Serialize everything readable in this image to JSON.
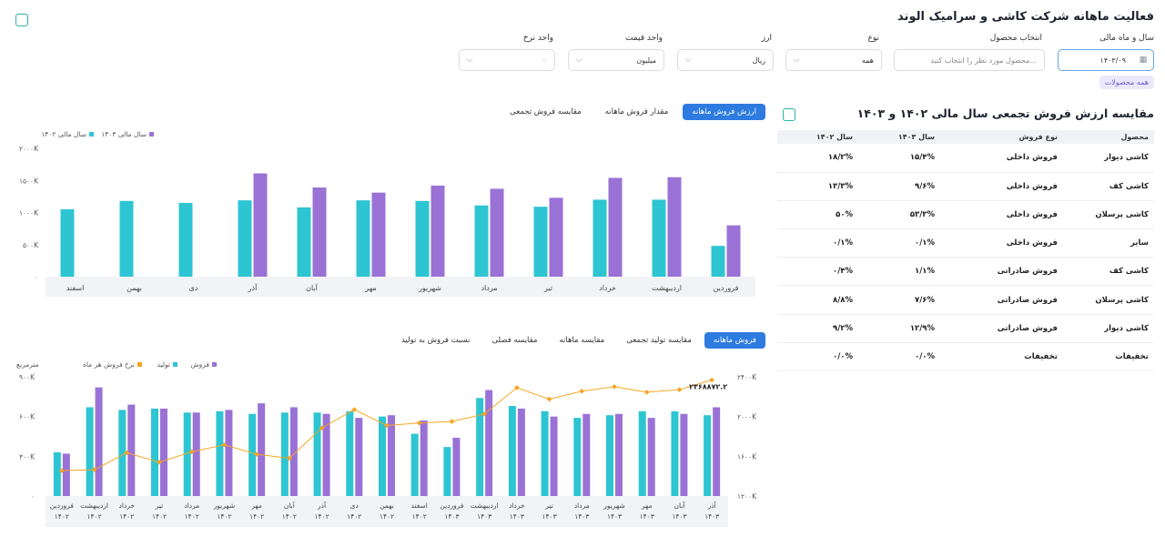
{
  "header": {
    "title": "فعالیت ماهانه شرکت کاشی و سرامیک الوند"
  },
  "filters": {
    "year_month": {
      "label": "سال و ماه مالی",
      "value": "۱۴۰۳/۰۹"
    },
    "product": {
      "label": "انتخاب محصول",
      "placeholder": "محصول مورد نظر را انتخاب کنید..."
    },
    "type": {
      "label": "نوع",
      "value": "همه"
    },
    "currency": {
      "label": "ارز",
      "value": "ریال"
    },
    "price_unit": {
      "label": "واحد قیمت",
      "value": "میلیون"
    },
    "rate_unit": {
      "label": "واحد نرخ",
      "value": ""
    },
    "chip": "همه محصولات"
  },
  "table_section": {
    "title": "مقایسه ارزش فروش تجمعی سال مالی ۱۴۰۲ و ۱۴۰۳",
    "headers": [
      "محصول",
      "نوع فروش",
      "سال ۱۴۰۳",
      "سال ۱۴۰۲"
    ],
    "rows": [
      [
        "کاشی دیوار",
        "فروش داخلی",
        "۱۵/۴%",
        "۱۸/۲%"
      ],
      [
        "کاشی کف",
        "فروش داخلی",
        "۹/۶%",
        "۱۳/۳%"
      ],
      [
        "کاشی پرسلان",
        "فروش داخلی",
        "۵۳/۳%",
        "۵۰%"
      ],
      [
        "سایر",
        "فروش داخلی",
        "۰/۱%",
        "۰/۱%"
      ],
      [
        "کاشی کف",
        "فروش صادراتی",
        "۱/۱%",
        "۰/۴%"
      ],
      [
        "کاشی پرسلان",
        "فروش صادراتی",
        "۷/۶%",
        "۸/۸%"
      ],
      [
        "کاشی دیوار",
        "فروش صادراتی",
        "۱۲/۹%",
        "۹/۲%"
      ],
      [
        "تخفیفات",
        "تخفیفات",
        "۰/۰%",
        "۰/۰%"
      ]
    ]
  },
  "top_tabs": [
    "ارزش فروش ماهانه",
    "مقدار فروش ماهانه",
    "مقایسه فروش تجمعی"
  ],
  "bottom_tabs": [
    "فروش ماهانه",
    "مقایسه تولید تجمعی",
    "مقایسه ماهانه",
    "مقایسه فصلی",
    "نسبت فروش به تولید"
  ],
  "chart_data": [
    {
      "type": "bar",
      "categories": [
        "فروردین",
        "اردیبهشت",
        "خرداد",
        "تیر",
        "مرداد",
        "شهریور",
        "مهر",
        "آبان",
        "آذر",
        "دی",
        "بهمن",
        "اسفند"
      ],
      "series": [
        {
          "name": "سال مالی ۱۴۰۲",
          "color": "#2ec5d3",
          "values": [
            480,
            1200,
            1200,
            1090,
            1110,
            1180,
            1190,
            1080,
            1190,
            1150,
            1180,
            1050
          ]
        },
        {
          "name": "سال مالی ۱۴۰۳",
          "color": "#9a72d6",
          "values": [
            800,
            1550,
            1540,
            1230,
            1370,
            1420,
            1310,
            1390,
            1610,
            null,
            null,
            null
          ]
        }
      ],
      "ylim": [
        0,
        2000
      ],
      "yticks": [
        "۰",
        "۵۰۰K",
        "۱۰۰۰K",
        "۱۵۰۰K",
        "۲۰۰۰K"
      ],
      "legend": "top-left"
    },
    {
      "type": "bar",
      "categories": [
        "فروردین ۱۴۰۲",
        "اردیبهشت ۱۴۰۲",
        "خرداد ۱۴۰۲",
        "تیر ۱۴۰۲",
        "مرداد ۱۴۰۲",
        "شهریور ۱۴۰۲",
        "مهر ۱۴۰۲",
        "آبان ۱۴۰۲",
        "آذر ۱۴۰۲",
        "دی ۱۴۰۲",
        "بهمن ۱۴۰۲",
        "اسفند ۱۴۰۲",
        "فروردین ۱۴۰۳",
        "اردیبهشت ۱۴۰۳",
        "خرداد ۱۴۰۳",
        "تیر ۱۴۰۳",
        "مرداد ۱۴۰۳",
        "شهریور ۱۴۰۳",
        "مهر ۱۴۰۳",
        "آبان ۱۴۰۳",
        "آذر ۱۴۰۳"
      ],
      "series": [
        {
          "name": "تولید",
          "color": "#2ec5d3",
          "values": [
            330,
            670,
            650,
            660,
            630,
            640,
            620,
            630,
            630,
            640,
            600,
            470,
            370,
            740,
            680,
            640,
            590,
            610,
            640,
            640,
            610
          ]
        },
        {
          "name": "فروش",
          "color": "#9a72d6",
          "values": [
            320,
            820,
            690,
            660,
            630,
            650,
            700,
            670,
            620,
            590,
            610,
            570,
            440,
            800,
            660,
            600,
            620,
            620,
            590,
            620,
            670
          ]
        },
        {
          "name": "نرخ فروش هر ماه",
          "color": "#f5a623",
          "type": "line",
          "values": [
            1455000,
            1465000,
            1635000,
            1540000,
            1645000,
            1715000,
            1620000,
            1580000,
            1885000,
            2070000,
            1910000,
            1935000,
            1950000,
            2025000,
            2290000,
            2175000,
            2255000,
            2300000,
            2245000,
            2270000,
            2368872
          ]
        }
      ],
      "ylim_left": [
        0,
        900
      ],
      "ylim_right": [
        1200000,
        2400000
      ],
      "yticks_left": [
        "۰",
        "۳۰۰K",
        "۶۰۰K",
        "۹۰۰K"
      ],
      "yticks_right": [
        "۱۲۰۰K",
        "۱۶۰۰K",
        "۲۰۰۰K",
        "۲۴۰۰K"
      ],
      "ylabel_left": "مترمربع",
      "annotation": "۲۳۶۸۸۷۲.۲",
      "legend": "top-left"
    }
  ]
}
